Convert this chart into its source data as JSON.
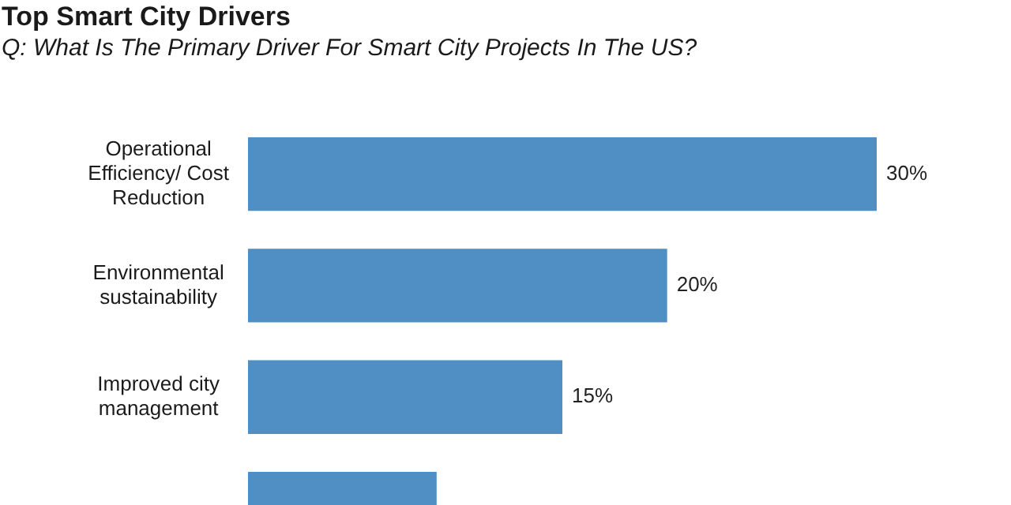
{
  "chart_data": {
    "type": "bar",
    "orientation": "horizontal",
    "title": "Top Smart City Drivers",
    "subtitle": "Q: What Is The Primary Driver For Smart City Projects In The US?",
    "categories": [
      "Operational Efficiency/ Cost Reduction",
      "Environmental sustainability",
      "Improved city management",
      null
    ],
    "values": [
      30,
      20,
      15,
      9
    ],
    "value_labels": [
      "30%",
      "20%",
      "15%",
      null
    ],
    "color": "#4f8fc4"
  }
}
